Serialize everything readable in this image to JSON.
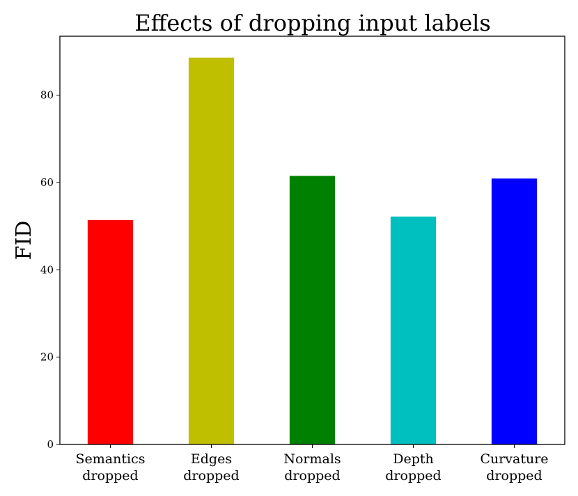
{
  "chart_data": {
    "type": "bar",
    "title": "Effects of dropping input labels",
    "xlabel": "",
    "ylabel": "FID",
    "ylim": [
      0,
      93.5
    ],
    "yticks": [
      0,
      20,
      40,
      60,
      80
    ],
    "grid": false,
    "legend": "none",
    "categories": [
      [
        "Semantics",
        "dropped"
      ],
      [
        "Edges",
        "dropped"
      ],
      [
        "Normals",
        "dropped"
      ],
      [
        "Depth",
        "dropped"
      ],
      [
        "Curvature",
        "dropped"
      ]
    ],
    "values": [
      51.4,
      88.6,
      61.5,
      52.2,
      60.9
    ],
    "colors": [
      "#ff0000",
      "#bfbf00",
      "#008000",
      "#00bfbf",
      "#0000ff"
    ]
  }
}
